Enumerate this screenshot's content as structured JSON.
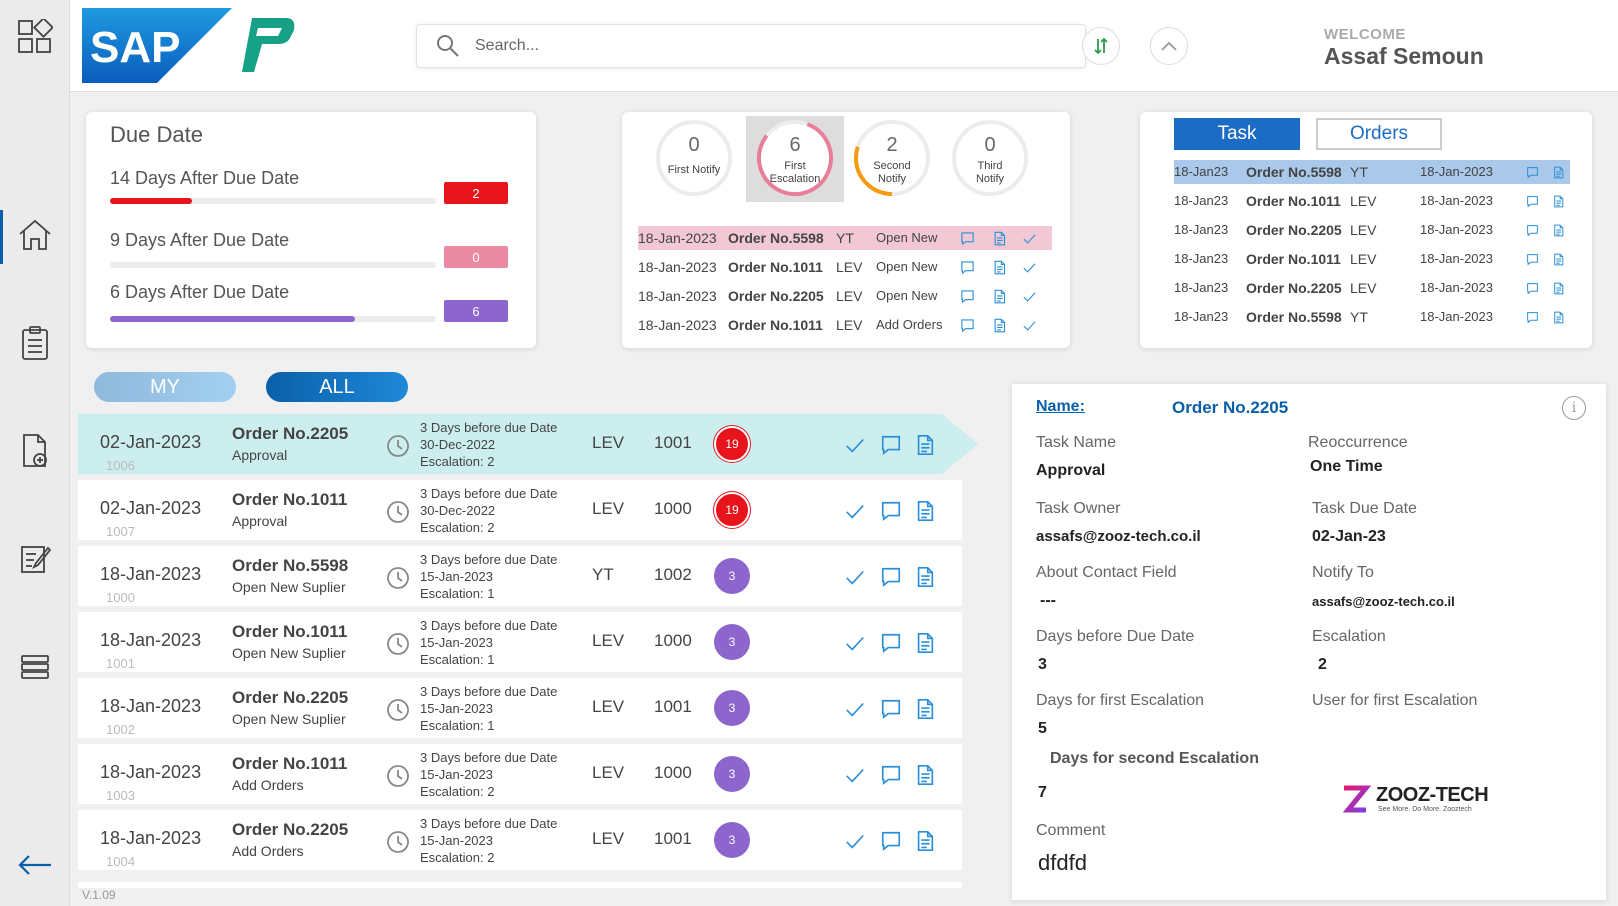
{
  "header": {
    "search_placeholder": "Search...",
    "welcome": "WELCOME",
    "user_name": "Assaf Semoun",
    "sap_logo_text": "SAP"
  },
  "sidebar": {
    "items": [
      {
        "icon": "apps-grid-icon"
      },
      {
        "icon": "home-icon",
        "active": true
      },
      {
        "icon": "clipboard-list-icon"
      },
      {
        "icon": "document-add-icon"
      },
      {
        "icon": "edit-note-icon"
      },
      {
        "icon": "layers-icon"
      },
      {
        "icon": "back-arrow-icon"
      }
    ]
  },
  "due_card": {
    "title": "Due Date",
    "rows": [
      {
        "label": "14 Days After Due Date",
        "count": "2",
        "progress": 0.25,
        "color": "#e8141c"
      },
      {
        "label": "9 Days After Due Date",
        "count": "0",
        "progress": 0,
        "color": "#e98aa2"
      },
      {
        "label": "6 Days After Due Date",
        "count": "6",
        "progress": 0.75,
        "color": "#8c66cc"
      }
    ]
  },
  "notify_card": {
    "rings": [
      {
        "num": "0",
        "label1": "First Notify",
        "label2": "",
        "color": "#e5e5e5",
        "progress": 0
      },
      {
        "num": "6",
        "label1": "First",
        "label2": "Escalation",
        "color": "#e97e9a",
        "progress": 0.8
      },
      {
        "num": "2",
        "label1": "Second",
        "label2": "Notify",
        "color": "#f39c12",
        "progress": 0.3
      },
      {
        "num": "0",
        "label1": "Third",
        "label2": "Notify",
        "color": "#e5e5e5",
        "progress": 0
      }
    ],
    "rows": [
      {
        "date": "18-Jan-2023",
        "order": "Order No.5598",
        "code": "YT",
        "status": "Open New"
      },
      {
        "date": "18-Jan-2023",
        "order": "Order No.1011",
        "code": "LEV",
        "status": "Open New"
      },
      {
        "date": "18-Jan-2023",
        "order": "Order No.2205",
        "code": "LEV",
        "status": "Open New"
      },
      {
        "date": "18-Jan-2023",
        "order": "Order No.1011",
        "code": "LEV",
        "status": "Add Orders"
      }
    ]
  },
  "task_card": {
    "tabs": {
      "task": "Task",
      "orders": "Orders"
    },
    "rows": [
      {
        "date": "18-Jan23",
        "order": "Order No.5598",
        "code": "YT",
        "due": "18-Jan-2023"
      },
      {
        "date": "18-Jan23",
        "order": "Order No.1011",
        "code": "LEV",
        "due": "18-Jan-2023"
      },
      {
        "date": "18-Jan23",
        "order": "Order No.2205",
        "code": "LEV",
        "due": "18-Jan-2023"
      },
      {
        "date": "18-Jan23",
        "order": "Order No.1011",
        "code": "LEV",
        "due": "18-Jan-2023"
      },
      {
        "date": "18-Jan23",
        "order": "Order No.2205",
        "code": "LEV",
        "due": "18-Jan-2023"
      },
      {
        "date": "18-Jan23",
        "order": "Order No.5598",
        "code": "YT",
        "due": "18-Jan-2023"
      }
    ]
  },
  "filter": {
    "my": "MY",
    "all": "ALL"
  },
  "list": [
    {
      "date": "02-Jan-2023",
      "id": "1006",
      "order": "Order No.2205",
      "type": "Approval",
      "d1": "3 Days before due Date",
      "d2": "30-Dec-2022",
      "d3": "Escalation: 2",
      "code": "LEV",
      "num": "1001",
      "badge": "19",
      "badge_color": "#e8141c"
    },
    {
      "date": "02-Jan-2023",
      "id": "1007",
      "order": "Order No.1011",
      "type": "Approval",
      "d1": "3 Days before due Date",
      "d2": "30-Dec-2022",
      "d3": "Escalation: 2",
      "code": "LEV",
      "num": "1000",
      "badge": "19",
      "badge_color": "#e8141c"
    },
    {
      "date": "18-Jan-2023",
      "id": "1000",
      "order": "Order No.5598",
      "type": "Open New Suplier",
      "d1": "3 Days before due Date",
      "d2": "15-Jan-2023",
      "d3": "Escalation: 1",
      "code": "YT",
      "num": "1002",
      "badge": "3",
      "badge_color": "#8c66cc"
    },
    {
      "date": "18-Jan-2023",
      "id": "1001",
      "order": "Order No.1011",
      "type": "Open New Suplier",
      "d1": "3 Days before due Date",
      "d2": "15-Jan-2023",
      "d3": "Escalation: 1",
      "code": "LEV",
      "num": "1000",
      "badge": "3",
      "badge_color": "#8c66cc"
    },
    {
      "date": "18-Jan-2023",
      "id": "1002",
      "order": "Order No.2205",
      "type": "Open New Suplier",
      "d1": "3 Days before due Date",
      "d2": "15-Jan-2023",
      "d3": "Escalation: 1",
      "code": "LEV",
      "num": "1001",
      "badge": "3",
      "badge_color": "#8c66cc"
    },
    {
      "date": "18-Jan-2023",
      "id": "1003",
      "order": "Order No.1011",
      "type": "Add Orders",
      "d1": "3 Days before due Date",
      "d2": "15-Jan-2023",
      "d3": "Escalation: 2",
      "code": "LEV",
      "num": "1000",
      "badge": "3",
      "badge_color": "#8c66cc"
    },
    {
      "date": "18-Jan-2023",
      "id": "1004",
      "order": "Order No.2205",
      "type": "Add Orders",
      "d1": "3 Days before due Date",
      "d2": "15-Jan-2023",
      "d3": "Escalation: 2",
      "code": "LEV",
      "num": "1001",
      "badge": "3",
      "badge_color": "#8c66cc"
    }
  ],
  "detail": {
    "name_label": "Name:",
    "name_value": "Order No.2205",
    "task_name_label": "Task Name",
    "task_name": "Approval",
    "reoccurrence_label": "Reoccurrence",
    "reoccurrence": "One Time",
    "task_owner_label": "Task Owner",
    "task_owner": "assafs@zooz-tech.co.il",
    "task_due_label": "Task Due Date",
    "task_due": "02-Jan-23",
    "about_label": "About Contact Field",
    "about": "---",
    "notify_to_label": "Notify To",
    "notify_to": "assafs@zooz-tech.co.il",
    "days_before_label": "Days before Due Date",
    "days_before": "3",
    "escalation_label": "Escalation",
    "escalation": "2",
    "first_esc_days_label": "Days for first Escalation",
    "first_esc_days": "5",
    "first_esc_user_label": "User for first Escalation",
    "second_esc_label": "Days for second Escalation",
    "second_esc": "7",
    "comment_label": "Comment",
    "comment": "dfdfd",
    "brand": "ZOOZ-TECH",
    "brand_tagline": "See More. Do More. Zooztech"
  },
  "version": "V.1.09",
  "colors": {
    "primary": "#0a5fa8",
    "selected_row": "#cdeeee",
    "accent_blue": "#2a8fd8"
  }
}
